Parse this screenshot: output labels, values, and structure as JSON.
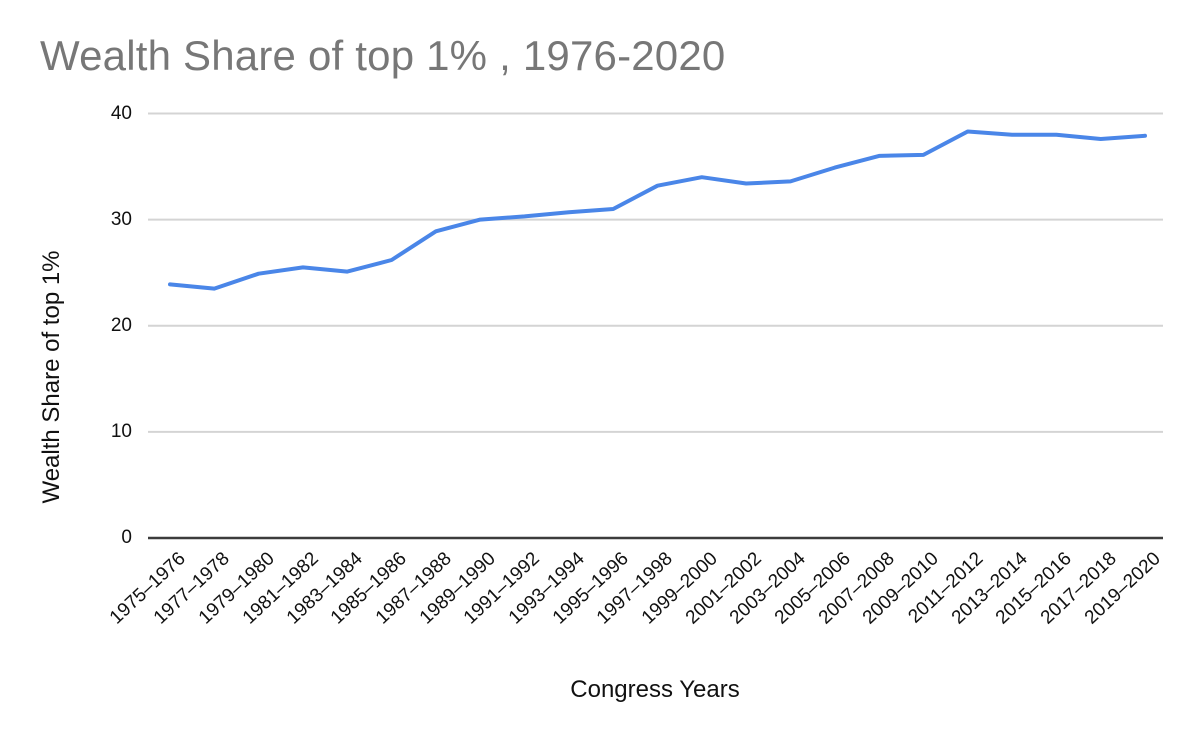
{
  "chart_data": {
    "type": "line",
    "title": "Wealth Share of top 1% , 1976-2020",
    "xlabel": "Congress Years",
    "ylabel": "Wealth Share of top 1%",
    "categories": [
      "1975–1976",
      "1977–1978",
      "1979–1980",
      "1981–1982",
      "1983–1984",
      "1985–1986",
      "1987–1988",
      "1989–1990",
      "1991–1992",
      "1993–1994",
      "1995–1996",
      "1997–1998",
      "1999–2000",
      "2001–2002",
      "2003–2004",
      "2005–2006",
      "2007–2008",
      "2009–2010",
      "2011–2012",
      "2013–2014",
      "2015–2016",
      "2017–2018",
      "2019–2020"
    ],
    "series": [
      {
        "name": "Wealth Share of top 1%",
        "values": [
          23.9,
          23.5,
          24.9,
          25.5,
          25.1,
          26.2,
          28.9,
          30.0,
          30.3,
          30.7,
          31.0,
          33.2,
          34.0,
          33.4,
          33.6,
          34.9,
          36.0,
          36.1,
          38.3,
          38.0,
          38.0,
          37.6,
          37.9
        ]
      }
    ],
    "y_ticks": [
      0,
      10,
      20,
      30,
      40
    ],
    "ylim": [
      0,
      40
    ],
    "grid": true,
    "legend": "none"
  },
  "colors": {
    "line": "#4a86e8",
    "title_text": "#777777",
    "gridline": "#d4d4d4",
    "axis_line": "#3c3c3c",
    "tick_text": "#111111",
    "background": "#ffffff"
  }
}
